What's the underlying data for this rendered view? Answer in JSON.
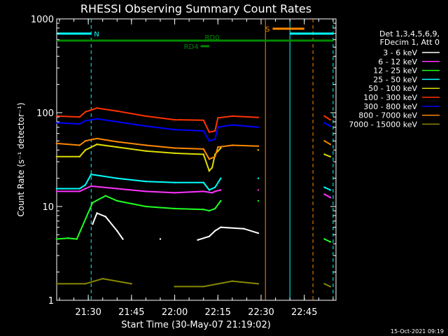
{
  "chart_data": {
    "type": "line",
    "title": "RHESSI Observing Summary Count Rates",
    "xlabel": "Start Time (30-May-07 21:19:02)",
    "ylabel": "Count Rate (s⁻¹ detector⁻¹)",
    "y_scale": "log",
    "ylim": [
      1,
      1000
    ],
    "xlim": [
      "21:19:02",
      "22:56:00"
    ],
    "x_ticks": [
      "21:30",
      "21:45",
      "22:00",
      "22:15",
      "22:30",
      "22:45"
    ],
    "y_ticks": [
      "1",
      "10",
      "100",
      "1000"
    ],
    "legend_header": [
      "Det 1,3,4,5,6,9,",
      "FDecim 1, Att 0"
    ],
    "legend_placement": "right",
    "series": [
      {
        "name": "3 - 6 keV",
        "color": "#ffffff",
        "points": [
          [
            "21:31:30",
            6.5
          ],
          [
            "21:33",
            8.5
          ],
          [
            "21:36",
            7.8
          ],
          [
            "21:40",
            5.5
          ],
          [
            "21:42",
            4.5
          ],
          [
            "21:55",
            4.5
          ],
          [
            "22:08",
            4.4
          ],
          [
            "22:12",
            4.8
          ],
          [
            "22:14",
            5.5
          ],
          [
            "22:16",
            6.0
          ],
          [
            "22:24",
            5.8
          ],
          [
            "22:29",
            5.2
          ]
        ]
      },
      {
        "name": "6 - 12 keV",
        "color": "#ff33ff",
        "points": [
          [
            "21:19",
            14.5
          ],
          [
            "21:27",
            14.5
          ],
          [
            "21:29",
            15.5
          ],
          [
            "21:31",
            16.5
          ],
          [
            "21:40",
            15.5
          ],
          [
            "21:50",
            14.5
          ],
          [
            "22:00",
            14.0
          ],
          [
            "22:10",
            14.5
          ],
          [
            "22:13",
            14.0
          ],
          [
            "22:14",
            14.5
          ],
          [
            "22:16",
            15.0
          ],
          [
            "22:29",
            15.0
          ],
          [
            "22:52",
            13.5
          ],
          [
            "22:54",
            12.5
          ]
        ]
      },
      {
        "name": "12 - 25 keV",
        "color": "#22ff22",
        "points": [
          [
            "21:19",
            4.5
          ],
          [
            "21:23",
            4.6
          ],
          [
            "21:26",
            4.5
          ],
          [
            "21:31:30",
            11.0
          ],
          [
            "21:36",
            13.0
          ],
          [
            "21:40",
            11.5
          ],
          [
            "21:50",
            10.0
          ],
          [
            "22:00",
            9.5
          ],
          [
            "22:10",
            9.3
          ],
          [
            "22:12",
            9.0
          ],
          [
            "22:14",
            9.5
          ],
          [
            "22:16",
            11.5
          ],
          [
            "22:29",
            11.5
          ],
          [
            "22:52",
            4.5
          ],
          [
            "22:54",
            4.2
          ]
        ]
      },
      {
        "name": "25 - 50 keV",
        "color": "#00ffff",
        "points": [
          [
            "21:19",
            15.5
          ],
          [
            "21:27",
            15.5
          ],
          [
            "21:29",
            17.0
          ],
          [
            "21:31",
            22.0
          ],
          [
            "21:40",
            20.0
          ],
          [
            "21:50",
            18.5
          ],
          [
            "22:00",
            18.0
          ],
          [
            "22:10",
            18.0
          ],
          [
            "22:12",
            15.0
          ],
          [
            "22:14",
            16.0
          ],
          [
            "22:16",
            20.0
          ],
          [
            "22:29",
            20.0
          ],
          [
            "22:52",
            16.0
          ],
          [
            "22:54",
            15.0
          ]
        ]
      },
      {
        "name": "50 - 100 keV",
        "color": "#dddd00",
        "points": [
          [
            "21:19",
            34.0
          ],
          [
            "21:27",
            34.0
          ],
          [
            "21:29",
            40.0
          ],
          [
            "21:33",
            46.0
          ],
          [
            "21:40",
            43.0
          ],
          [
            "21:50",
            39.0
          ],
          [
            "22:00",
            37.0
          ],
          [
            "22:10",
            36.0
          ],
          [
            "22:12",
            24.0
          ],
          [
            "22:13",
            26.0
          ],
          [
            "22:14",
            36.0
          ],
          [
            "22:16",
            42.0
          ],
          [
            "22:29",
            40.0
          ],
          [
            "22:52",
            36.0
          ],
          [
            "22:54",
            34.0
          ]
        ]
      },
      {
        "name": "100 - 300 keV",
        "color": "#ff3300",
        "points": [
          [
            "21:19",
            92.0
          ],
          [
            "21:27",
            90.0
          ],
          [
            "21:29",
            102.0
          ],
          [
            "21:33",
            112.0
          ],
          [
            "21:40",
            104.0
          ],
          [
            "21:50",
            92.0
          ],
          [
            "22:00",
            84.0
          ],
          [
            "22:10",
            83.0
          ],
          [
            "22:12",
            62.0
          ],
          [
            "22:14",
            64.0
          ],
          [
            "22:15",
            88.0
          ],
          [
            "22:20",
            92.0
          ],
          [
            "22:29",
            89.0
          ],
          [
            "22:52",
            92.0
          ],
          [
            "22:54",
            84.0
          ]
        ]
      },
      {
        "name": "300 - 800 keV",
        "color": "#0000ff",
        "points": [
          [
            "21:19",
            78.0
          ],
          [
            "21:27",
            76.0
          ],
          [
            "21:29",
            82.0
          ],
          [
            "21:33",
            86.0
          ],
          [
            "21:40",
            80.0
          ],
          [
            "21:50",
            72.0
          ],
          [
            "22:00",
            66.0
          ],
          [
            "22:10",
            64.0
          ],
          [
            "22:12",
            50.0
          ],
          [
            "22:14",
            52.0
          ],
          [
            "22:15",
            70.0
          ],
          [
            "22:20",
            74.0
          ],
          [
            "22:29",
            70.0
          ],
          [
            "22:52",
            78.0
          ],
          [
            "22:54",
            72.0
          ]
        ]
      },
      {
        "name": "800 - 7000 keV",
        "color": "#ff8800",
        "points": [
          [
            "21:19",
            47.0
          ],
          [
            "21:27",
            45.0
          ],
          [
            "21:29",
            50.0
          ],
          [
            "21:33",
            53.0
          ],
          [
            "21:40",
            49.0
          ],
          [
            "21:50",
            45.0
          ],
          [
            "22:00",
            42.0
          ],
          [
            "22:10",
            41.0
          ],
          [
            "22:12",
            32.0
          ],
          [
            "22:14",
            34.0
          ],
          [
            "22:15",
            43.0
          ],
          [
            "22:20",
            45.0
          ],
          [
            "22:29",
            44.0
          ],
          [
            "22:52",
            50.0
          ],
          [
            "22:54",
            46.0
          ]
        ]
      },
      {
        "name": "7000 - 15000 keV",
        "color": "#888800",
        "points": [
          [
            "21:19",
            1.5
          ],
          [
            "21:29",
            1.5
          ],
          [
            "21:35",
            1.7
          ],
          [
            "21:45",
            1.5
          ],
          [
            "22:00",
            1.4
          ],
          [
            "22:10",
            1.4
          ],
          [
            "22:20",
            1.6
          ],
          [
            "22:29",
            1.5
          ],
          [
            "22:52",
            1.5
          ],
          [
            "22:54",
            1.4
          ]
        ]
      }
    ],
    "annotations": [
      {
        "label": "N",
        "color": "#00ffff",
        "bar": [
          "21:19",
          "21:31"
        ]
      },
      {
        "label": "S",
        "color": "#ff8800",
        "bar": [
          "22:34",
          "22:45"
        ]
      },
      {
        "label": "",
        "color": "#00ffff",
        "bar": [
          "22:40",
          "22:55"
        ]
      },
      {
        "label": "RD0",
        "color": "#008800",
        "bar": [
          "21:19",
          "22:55"
        ]
      },
      {
        "label": "RD4",
        "color": "#008800",
        "bar": [
          "22:09",
          "22:12"
        ]
      }
    ],
    "vertical_lines": [
      {
        "time": "21:31",
        "color": "#00ffff",
        "style": "dashed"
      },
      {
        "time": "22:31:30",
        "color": "#ff8800",
        "style": "solid"
      },
      {
        "time": "22:40",
        "color": "#00ffff",
        "style": "solid"
      },
      {
        "time": "22:48",
        "color": "#ff8800",
        "style": "dashed"
      },
      {
        "time": "22:55",
        "color": "#00ffff",
        "style": "dashed"
      }
    ]
  },
  "timestamp": "15-Oct-2021 09:19"
}
